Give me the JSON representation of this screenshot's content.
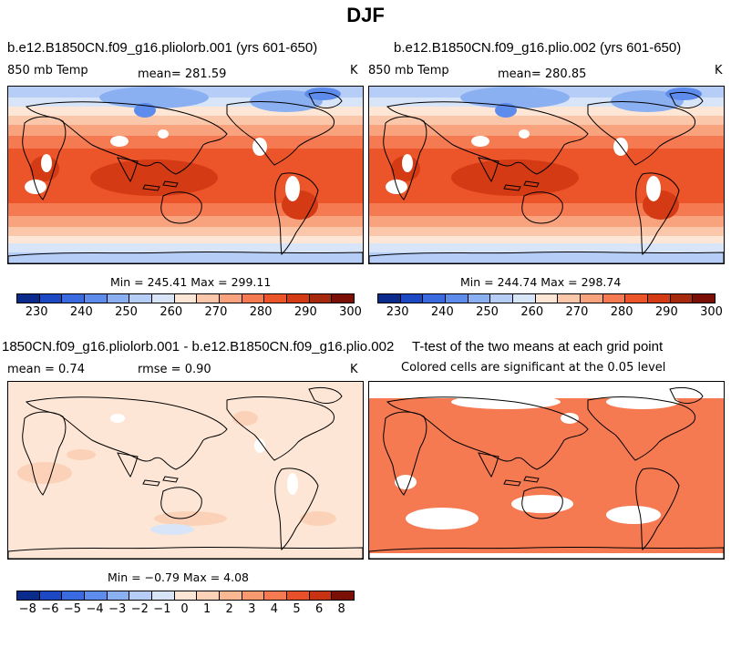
{
  "title": "DJF",
  "panels": {
    "p1": {
      "title": "b.e12.B1850CN.f09_g16.pliolorb.001 (yrs 601-650)",
      "left_label": "850 mb Temp",
      "mean_label": "mean= 281.59",
      "units": "K",
      "minmax": "Min = 245.41  Max = 299.11"
    },
    "p2": {
      "title": "b.e12.B1850CN.f09_g16.plio.002 (yrs 601-650)",
      "left_label": "850 mb Temp",
      "mean_label": "mean= 280.85",
      "units": "K",
      "minmax": "Min = 244.74  Max = 298.74"
    },
    "p3": {
      "title": "1850CN.f09_g16.pliolorb.001 - b.e12.B1850CN.f09_g16.plio.002",
      "mean_label": "mean =    0.74",
      "rmse_label": "rmse =    0.90",
      "units": "K",
      "minmax": "Min =  −0.79  Max =    4.08"
    },
    "p4": {
      "title": "T-test of the two means at each grid point",
      "subtitle": "Colored cells are significant at the 0.05 level"
    }
  },
  "colorbars": {
    "temp": {
      "colors": [
        "#0a2a8c",
        "#1c48c4",
        "#3a6ae0",
        "#5d8ced",
        "#8bb0f2",
        "#b6cef7",
        "#d8e5f9",
        "#fde6d6",
        "#fbc7aa",
        "#f8a27e",
        "#f57a52",
        "#ec5429",
        "#d43a14",
        "#a82a0e",
        "#7a0f05"
      ],
      "labels": [
        "230",
        "240",
        "250",
        "260",
        "270",
        "280",
        "290",
        "300"
      ]
    },
    "diff": {
      "colors": [
        "#0a2a8c",
        "#1c48c4",
        "#3a6ae0",
        "#5d8ced",
        "#8bb0f2",
        "#b6cef7",
        "#d8e5f9",
        "#fde6d6",
        "#fbd2b8",
        "#f9b792",
        "#f79a70",
        "#f57a52",
        "#e8502a",
        "#c73212",
        "#7a0f05"
      ],
      "labels": [
        "−8",
        "−6",
        "−5",
        "−4",
        "−3",
        "−2",
        "−1",
        "0",
        "1",
        "2",
        "3",
        "4",
        "5",
        "6",
        "8"
      ]
    }
  }
}
